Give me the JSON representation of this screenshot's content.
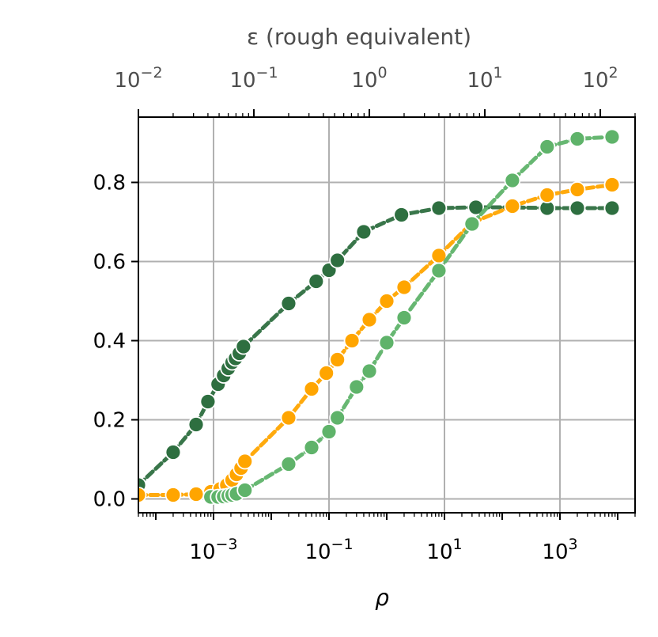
{
  "chart_data": {
    "type": "line",
    "xlabel": "ρ",
    "x_scale": "log",
    "xlim": [
      5e-05,
      20000
    ],
    "x_ticks": [
      {
        "value": 0.001,
        "base": "10",
        "exp": "−3"
      },
      {
        "value": 0.1,
        "base": "10",
        "exp": "−1"
      },
      {
        "value": 10,
        "base": "10",
        "exp": "1"
      },
      {
        "value": 1000,
        "base": "10",
        "exp": "3"
      }
    ],
    "top_axis": {
      "label": "ε (rough equivalent)",
      "scale": "log",
      "xlim": [
        0.01,
        200
      ],
      "ticks": [
        {
          "value": 0.01,
          "base": "10",
          "exp": "−2"
        },
        {
          "value": 0.1,
          "base": "10",
          "exp": "−1"
        },
        {
          "value": 1,
          "base": "10",
          "exp": "0"
        },
        {
          "value": 10,
          "base": "10",
          "exp": "1"
        },
        {
          "value": 100,
          "base": "10",
          "exp": "2"
        }
      ]
    },
    "ylim": [
      -0.035,
      0.965
    ],
    "y_ticks": [
      {
        "value": 0,
        "label": "0.0"
      },
      {
        "value": 0.2,
        "label": "0.2"
      },
      {
        "value": 0.4,
        "label": "0.4"
      },
      {
        "value": 0.6,
        "label": "0.6"
      },
      {
        "value": 0.8,
        "label": "0.8"
      }
    ],
    "grid": true,
    "series": [
      {
        "color": "#2e6f40",
        "x": [
          5e-05,
          0.0002,
          0.0005,
          0.0008,
          0.0012,
          0.0015,
          0.0018,
          0.0021,
          0.0024,
          0.0028,
          0.0033,
          0.02,
          0.06,
          0.1,
          0.14,
          0.4,
          1.8,
          8,
          35,
          150,
          600,
          2000,
          8000
        ],
        "y": [
          0.035,
          0.118,
          0.188,
          0.246,
          0.29,
          0.312,
          0.33,
          0.345,
          0.355,
          0.368,
          0.385,
          0.494,
          0.55,
          0.578,
          0.603,
          0.675,
          0.718,
          0.735,
          0.737,
          0.737,
          0.735,
          0.735,
          0.735
        ]
      },
      {
        "color": "#ffa500",
        "x": [
          5e-05,
          0.0002,
          0.0005,
          0.0009,
          0.0013,
          0.0017,
          0.0021,
          0.0025,
          0.003,
          0.0035,
          0.02,
          0.05,
          0.09,
          0.14,
          0.25,
          0.5,
          1,
          2,
          8,
          30,
          150,
          600,
          2000,
          8000
        ],
        "y": [
          0.01,
          0.01,
          0.012,
          0.018,
          0.025,
          0.035,
          0.048,
          0.062,
          0.078,
          0.095,
          0.205,
          0.278,
          0.318,
          0.352,
          0.4,
          0.453,
          0.5,
          0.535,
          0.615,
          0.698,
          0.74,
          0.768,
          0.782,
          0.794
        ]
      },
      {
        "color": "#5fb36a",
        "x": [
          0.0009,
          0.0012,
          0.0015,
          0.0018,
          0.0021,
          0.0025,
          0.0035,
          0.02,
          0.05,
          0.1,
          0.14,
          0.3,
          0.5,
          1,
          2,
          8,
          30,
          150,
          600,
          2000,
          8000
        ],
        "y": [
          0.005,
          0.005,
          0.006,
          0.008,
          0.01,
          0.013,
          0.022,
          0.088,
          0.13,
          0.17,
          0.205,
          0.283,
          0.323,
          0.395,
          0.458,
          0.577,
          0.695,
          0.805,
          0.89,
          0.91,
          0.915
        ]
      }
    ]
  }
}
